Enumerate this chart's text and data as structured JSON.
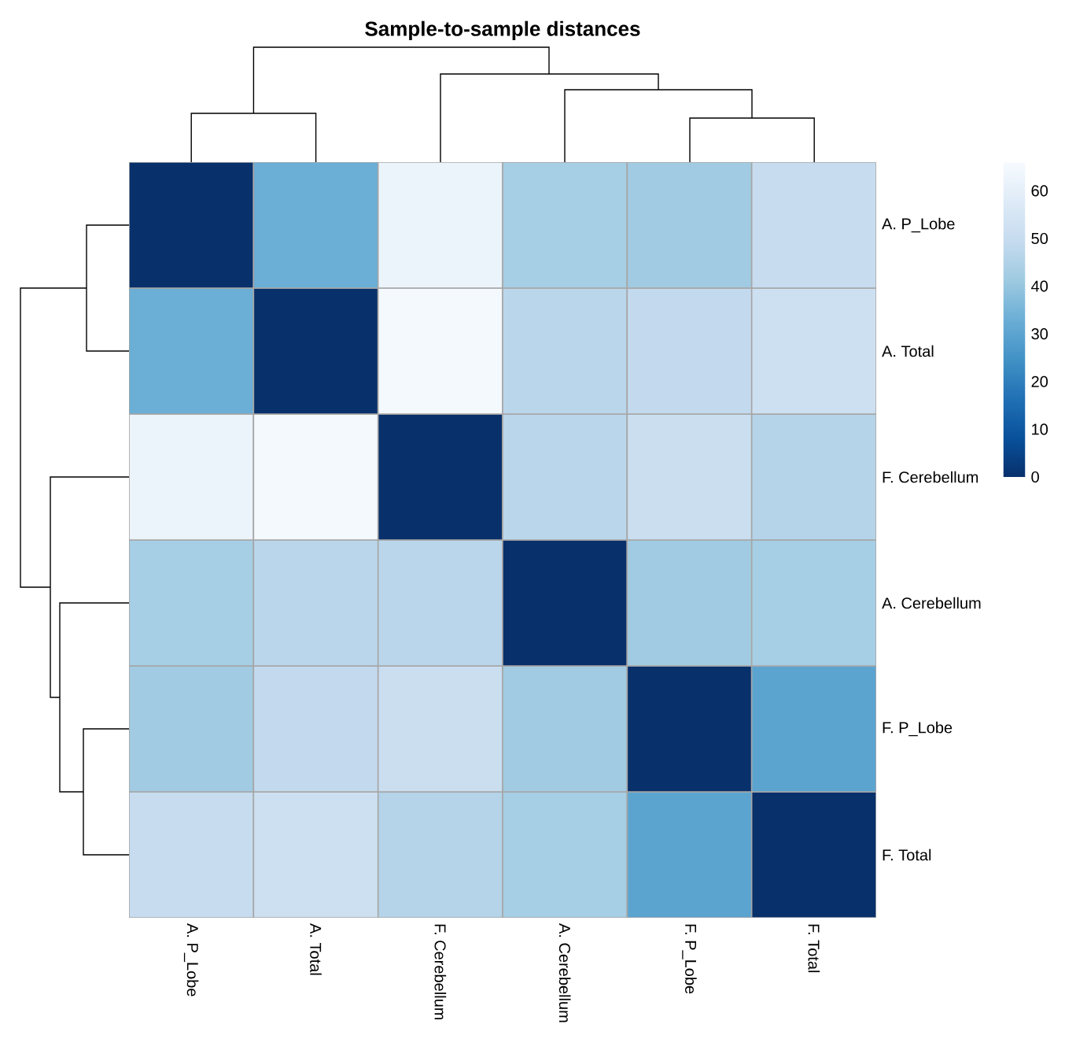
{
  "chart_data": {
    "type": "heatmap",
    "title": "Sample-to-sample distances",
    "categories": [
      "A. P_Lobe",
      "A. Total",
      "F. Cerebellum",
      "A. Cerebellum",
      "F. P_Lobe",
      "F. Total"
    ],
    "y_categories": [
      "A. P_Lobe",
      "A. Total",
      "F. Cerebellum",
      "A. Cerebellum",
      "F. P_Lobe",
      "F. Total"
    ],
    "cells": [
      [
        0,
        33,
        62,
        43,
        42,
        50
      ],
      [
        33,
        0,
        65,
        47,
        49,
        52
      ],
      [
        62,
        65,
        0,
        47,
        51,
        46
      ],
      [
        43,
        47,
        47,
        0,
        42,
        43
      ],
      [
        42,
        49,
        51,
        42,
        0,
        30
      ],
      [
        50,
        52,
        46,
        43,
        30,
        0
      ]
    ],
    "clim": [
      0,
      66
    ],
    "cticks": [
      0,
      10,
      20,
      30,
      40,
      50,
      60
    ]
  }
}
